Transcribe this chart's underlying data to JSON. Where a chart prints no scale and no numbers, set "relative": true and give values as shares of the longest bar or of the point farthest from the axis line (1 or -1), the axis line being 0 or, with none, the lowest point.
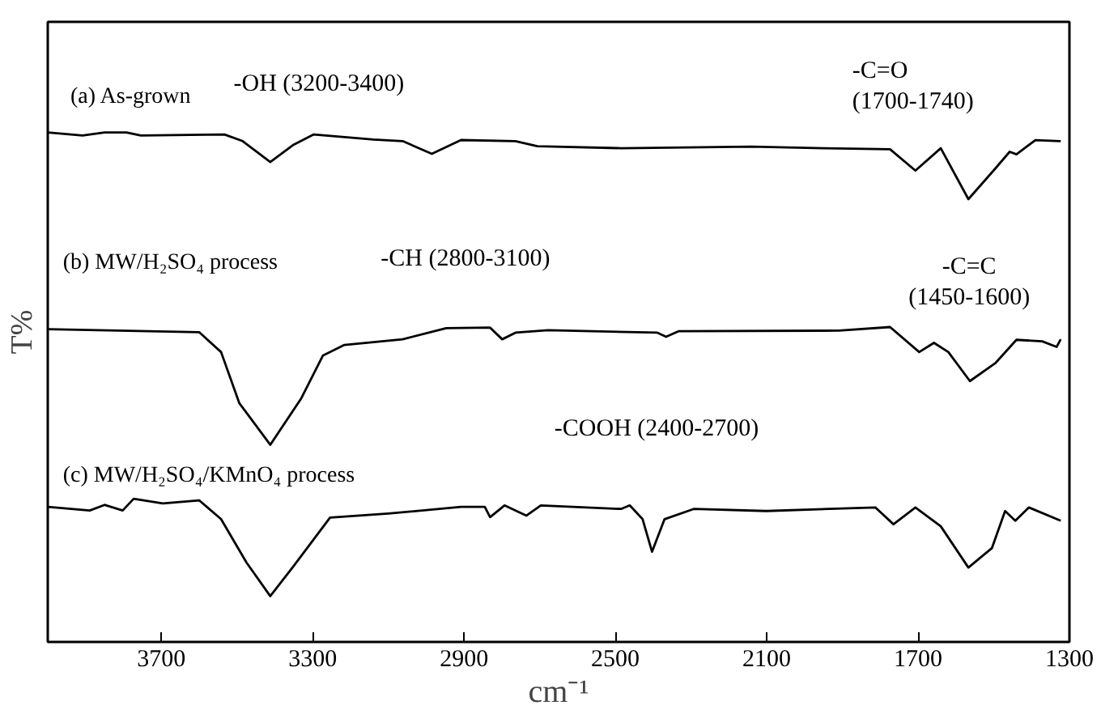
{
  "chart_data": {
    "type": "line",
    "relative": true,
    "xlabel": "cm⁻¹",
    "ylabel": "T%",
    "xlim": [
      4000,
      1300
    ],
    "xticks": [
      3700,
      3300,
      2900,
      2500,
      2100,
      1700,
      1300
    ],
    "annotations": [
      "-OH (3200-3400)",
      "-C=O\n(1700-1740)",
      "-CH (2800-3100)",
      "-C=C\n(1450-1600)",
      "-COOH (2400-2700)"
    ],
    "series": [
      {
        "name": "(a) As-grown",
        "color": "#000000",
        "x": [
          4000,
          3908,
          3850,
          3792,
          3754,
          3533,
          3485,
          3412,
          3350,
          3297,
          3139,
          3062,
          2985,
          2908,
          2764,
          2706,
          2485,
          2140,
          1947,
          1774,
          1707,
          1640,
          1567,
          1496,
          1458,
          1440,
          1390,
          1323
        ],
        "values": [
          1.0,
          0.994,
          1.0,
          1.0,
          0.994,
          0.996,
          0.983,
          0.942,
          0.976,
          0.996,
          0.986,
          0.983,
          0.958,
          0.985,
          0.983,
          0.973,
          0.969,
          0.972,
          0.969,
          0.967,
          0.925,
          0.969,
          0.869,
          0.929,
          0.962,
          0.957,
          0.985,
          0.983
        ]
      },
      {
        "name": "(b) MW/H₂SO₄ process",
        "color": "#000000",
        "x": [
          4000,
          3600,
          3542,
          3494,
          3412,
          3331,
          3273,
          3216,
          3062,
          2947,
          2831,
          2799,
          2764,
          2678,
          2389,
          2366,
          2332,
          1909,
          1774,
          1697,
          1658,
          1620,
          1563,
          1496,
          1440,
          1372,
          1334,
          1323
        ],
        "values": [
          0.614,
          0.608,
          0.569,
          0.469,
          0.387,
          0.477,
          0.562,
          0.583,
          0.594,
          0.616,
          0.617,
          0.594,
          0.607,
          0.612,
          0.607,
          0.599,
          0.61,
          0.611,
          0.618,
          0.569,
          0.587,
          0.569,
          0.512,
          0.547,
          0.593,
          0.59,
          0.579,
          0.594
        ]
      },
      {
        "name": "(c) MW/H₂SO₄/KMnO₄ process",
        "color": "#000000",
        "x": [
          4000,
          3889,
          3850,
          3802,
          3773,
          3696,
          3600,
          3542,
          3475,
          3412,
          3350,
          3254,
          3100,
          2908,
          2845,
          2831,
          2793,
          2735,
          2697,
          2485,
          2462,
          2428,
          2403,
          2370,
          2293,
          2101,
          1813,
          1765,
          1707,
          1640,
          1567,
          1505,
          1470,
          1443,
          1407,
          1323
        ],
        "values": [
          0.265,
          0.258,
          0.269,
          0.258,
          0.281,
          0.272,
          0.278,
          0.241,
          0.156,
          0.09,
          0.149,
          0.244,
          0.252,
          0.265,
          0.265,
          0.245,
          0.268,
          0.248,
          0.268,
          0.261,
          0.268,
          0.241,
          0.177,
          0.241,
          0.261,
          0.257,
          0.264,
          0.231,
          0.264,
          0.227,
          0.146,
          0.184,
          0.257,
          0.238,
          0.264,
          0.238
        ]
      }
    ]
  }
}
